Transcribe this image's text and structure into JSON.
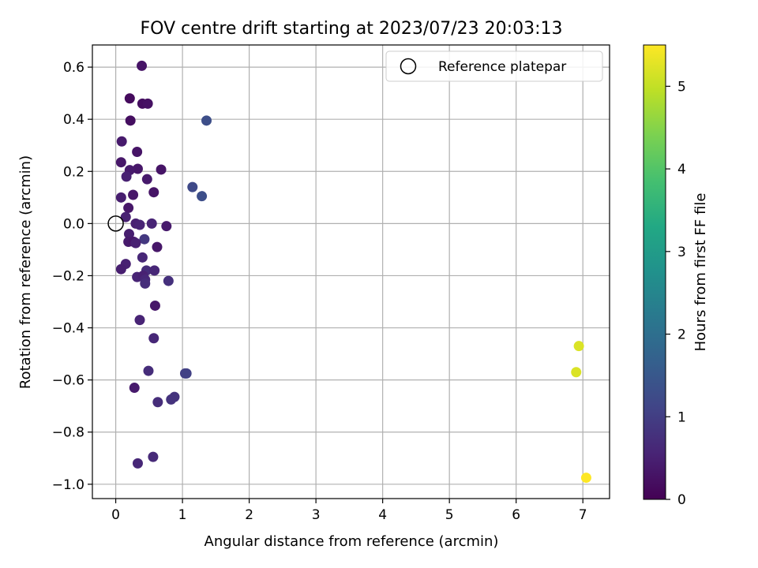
{
  "chart_data": {
    "type": "scatter",
    "title": "FOV centre drift starting at 2023/07/23 20:03:13",
    "xlabel": "Angular distance from reference (arcmin)",
    "ylabel": "Rotation from reference (arcmin)",
    "xlim": [
      -0.35,
      7.4
    ],
    "ylim": [
      -1.055,
      0.685
    ],
    "xticks": [
      0,
      1,
      2,
      3,
      4,
      5,
      6,
      7
    ],
    "yticks": [
      -1.0,
      -0.8,
      -0.6,
      -0.4,
      -0.2,
      0.0,
      0.2,
      0.4,
      0.6
    ],
    "grid": true,
    "legend": {
      "placement": "top-right",
      "entries": [
        "Reference platepar"
      ]
    },
    "reference_point": {
      "x": 0.0,
      "y": 0.0,
      "label": "Reference platepar"
    },
    "colorbar": {
      "label": "Hours from first FF file",
      "colormap": "viridis",
      "range": [
        0,
        5.5
      ],
      "ticks": [
        0,
        1,
        2,
        3,
        4,
        5
      ]
    },
    "points": [
      {
        "x": 0.39,
        "y": 0.605,
        "h": 0.3
      },
      {
        "x": 0.21,
        "y": 0.48,
        "h": 0.15
      },
      {
        "x": 0.4,
        "y": 0.46,
        "h": 0.2
      },
      {
        "x": 0.48,
        "y": 0.46,
        "h": 0.25
      },
      {
        "x": 0.22,
        "y": 0.395,
        "h": 0.2
      },
      {
        "x": 1.36,
        "y": 0.395,
        "h": 1.3
      },
      {
        "x": 0.09,
        "y": 0.315,
        "h": 0.4
      },
      {
        "x": 0.32,
        "y": 0.275,
        "h": 0.3
      },
      {
        "x": 0.08,
        "y": 0.235,
        "h": 0.35
      },
      {
        "x": 0.33,
        "y": 0.21,
        "h": 0.35
      },
      {
        "x": 0.21,
        "y": 0.205,
        "h": 0.4
      },
      {
        "x": 0.68,
        "y": 0.207,
        "h": 0.3
      },
      {
        "x": 0.16,
        "y": 0.18,
        "h": 0.5
      },
      {
        "x": 0.47,
        "y": 0.17,
        "h": 0.4
      },
      {
        "x": 1.15,
        "y": 0.14,
        "h": 1.2
      },
      {
        "x": 0.57,
        "y": 0.12,
        "h": 0.3
      },
      {
        "x": 0.26,
        "y": 0.11,
        "h": 0.35
      },
      {
        "x": 1.29,
        "y": 0.105,
        "h": 1.3
      },
      {
        "x": 0.08,
        "y": 0.1,
        "h": 0.45
      },
      {
        "x": 0.19,
        "y": 0.06,
        "h": 0.35
      },
      {
        "x": 0.15,
        "y": 0.025,
        "h": 0.5
      },
      {
        "x": 0.3,
        "y": 0.0,
        "h": 0.5
      },
      {
        "x": 0.36,
        "y": -0.005,
        "h": 0.55
      },
      {
        "x": 0.54,
        "y": 0.0,
        "h": 0.55
      },
      {
        "x": 0.76,
        "y": -0.01,
        "h": 0.4
      },
      {
        "x": 0.2,
        "y": -0.04,
        "h": 0.45
      },
      {
        "x": 0.43,
        "y": -0.06,
        "h": 0.9
      },
      {
        "x": 0.19,
        "y": -0.07,
        "h": 0.4
      },
      {
        "x": 0.27,
        "y": -0.07,
        "h": 0.35
      },
      {
        "x": 0.3,
        "y": -0.075,
        "h": 0.5
      },
      {
        "x": 0.62,
        "y": -0.09,
        "h": 0.35
      },
      {
        "x": 0.4,
        "y": -0.13,
        "h": 0.6
      },
      {
        "x": 0.15,
        "y": -0.155,
        "h": 0.5
      },
      {
        "x": 0.08,
        "y": -0.175,
        "h": 0.45
      },
      {
        "x": 0.46,
        "y": -0.18,
        "h": 0.7
      },
      {
        "x": 0.58,
        "y": -0.18,
        "h": 0.6
      },
      {
        "x": 0.32,
        "y": -0.205,
        "h": 0.55
      },
      {
        "x": 0.41,
        "y": -0.2,
        "h": 0.5
      },
      {
        "x": 0.44,
        "y": -0.215,
        "h": 0.6
      },
      {
        "x": 0.44,
        "y": -0.23,
        "h": 0.7
      },
      {
        "x": 0.79,
        "y": -0.22,
        "h": 0.75
      },
      {
        "x": 0.59,
        "y": -0.315,
        "h": 0.35
      },
      {
        "x": 0.36,
        "y": -0.37,
        "h": 0.55
      },
      {
        "x": 0.57,
        "y": -0.44,
        "h": 0.6
      },
      {
        "x": 0.49,
        "y": -0.565,
        "h": 0.7
      },
      {
        "x": 1.04,
        "y": -0.575,
        "h": 1.0
      },
      {
        "x": 1.06,
        "y": -0.575,
        "h": 1.05
      },
      {
        "x": 0.28,
        "y": -0.63,
        "h": 0.4
      },
      {
        "x": 0.88,
        "y": -0.665,
        "h": 0.8
      },
      {
        "x": 0.83,
        "y": -0.675,
        "h": 0.8
      },
      {
        "x": 0.63,
        "y": -0.685,
        "h": 0.7
      },
      {
        "x": 0.33,
        "y": -0.92,
        "h": 0.6
      },
      {
        "x": 0.56,
        "y": -0.895,
        "h": 0.65
      },
      {
        "x": 6.94,
        "y": -0.47,
        "h": 5.2
      },
      {
        "x": 6.9,
        "y": -0.57,
        "h": 5.2
      },
      {
        "x": 7.05,
        "y": -0.975,
        "h": 5.5
      }
    ]
  }
}
